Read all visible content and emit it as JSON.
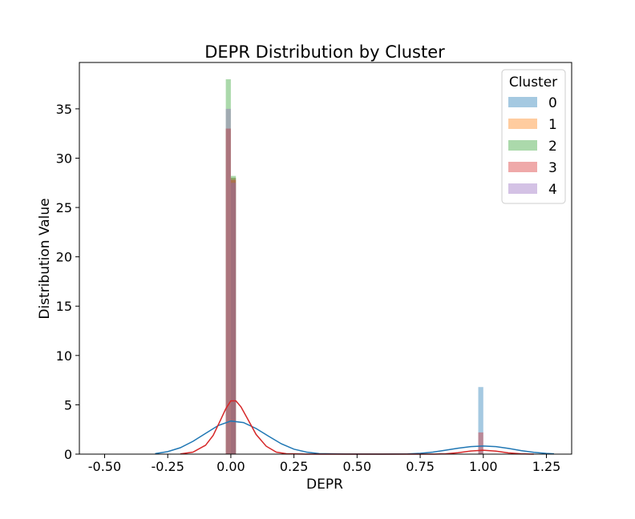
{
  "chart_data": {
    "type": "bar",
    "title": "DEPR Distribution by Cluster",
    "xlabel": "DEPR",
    "ylabel": "Distribution Value",
    "xlim": [
      -0.6,
      1.35
    ],
    "ylim": [
      0,
      39.7
    ],
    "xticks": [
      "-0.50",
      "-0.25",
      "0.00",
      "0.25",
      "0.50",
      "0.75",
      "1.00",
      "1.25"
    ],
    "yticks": [
      "0",
      "5",
      "10",
      "15",
      "20",
      "25",
      "30",
      "35"
    ],
    "legend_title": "Cluster",
    "legend_position": "top-right",
    "series": [
      {
        "name": "0",
        "color": "#1f77b4",
        "bars": [
          {
            "x": 0.0,
            "width": 0.02,
            "height": 28.0
          },
          {
            "x": 0.98,
            "width": 0.02,
            "height": 6.8
          }
        ],
        "kde": [
          [
            -0.3,
            0.05
          ],
          [
            -0.25,
            0.25
          ],
          [
            -0.2,
            0.65
          ],
          [
            -0.15,
            1.3
          ],
          [
            -0.1,
            2.1
          ],
          [
            -0.05,
            2.9
          ],
          [
            0.0,
            3.35
          ],
          [
            0.05,
            3.2
          ],
          [
            0.1,
            2.6
          ],
          [
            0.15,
            1.8
          ],
          [
            0.2,
            1.05
          ],
          [
            0.25,
            0.5
          ],
          [
            0.3,
            0.2
          ],
          [
            0.35,
            0.05
          ],
          [
            0.45,
            0.01
          ],
          [
            0.6,
            0.0
          ],
          [
            0.7,
            0.02
          ],
          [
            0.75,
            0.08
          ],
          [
            0.8,
            0.2
          ],
          [
            0.85,
            0.4
          ],
          [
            0.9,
            0.6
          ],
          [
            0.95,
            0.76
          ],
          [
            1.0,
            0.82
          ],
          [
            1.05,
            0.76
          ],
          [
            1.1,
            0.58
          ],
          [
            1.15,
            0.36
          ],
          [
            1.2,
            0.18
          ],
          [
            1.25,
            0.07
          ],
          [
            1.28,
            0.03
          ]
        ]
      },
      {
        "name": "1",
        "color": "#ff7f0e",
        "bars": [
          {
            "x": -0.02,
            "width": 0.02,
            "height": 33.0
          },
          {
            "x": 0.0,
            "width": 0.02,
            "height": 28.0
          }
        ],
        "kde": []
      },
      {
        "name": "2",
        "color": "#2ca02c",
        "bars": [
          {
            "x": -0.02,
            "width": 0.02,
            "height": 38.0
          },
          {
            "x": 0.0,
            "width": 0.02,
            "height": 28.2
          }
        ],
        "kde": []
      },
      {
        "name": "3",
        "color": "#d62728",
        "bars": [
          {
            "x": -0.02,
            "width": 0.02,
            "height": 33.0
          },
          {
            "x": 0.0,
            "width": 0.02,
            "height": 27.8
          },
          {
            "x": 0.98,
            "width": 0.02,
            "height": 2.2
          }
        ],
        "kde": [
          [
            -0.2,
            0.02
          ],
          [
            -0.15,
            0.2
          ],
          [
            -0.1,
            0.9
          ],
          [
            -0.07,
            1.9
          ],
          [
            -0.04,
            3.5
          ],
          [
            -0.02,
            4.6
          ],
          [
            0.0,
            5.4
          ],
          [
            0.02,
            5.4
          ],
          [
            0.04,
            4.8
          ],
          [
            0.07,
            3.4
          ],
          [
            0.1,
            2.0
          ],
          [
            0.14,
            0.8
          ],
          [
            0.18,
            0.2
          ],
          [
            0.22,
            0.04
          ],
          [
            0.3,
            0.0
          ],
          [
            0.8,
            0.0
          ],
          [
            0.85,
            0.03
          ],
          [
            0.9,
            0.15
          ],
          [
            0.95,
            0.32
          ],
          [
            1.0,
            0.4
          ],
          [
            1.05,
            0.3
          ],
          [
            1.1,
            0.12
          ],
          [
            1.15,
            0.03
          ],
          [
            1.2,
            0.0
          ]
        ]
      },
      {
        "name": "4",
        "color": "#9467bd",
        "bars": [
          {
            "x": -0.02,
            "width": 0.02,
            "height": 35.0
          },
          {
            "x": 0.0,
            "width": 0.02,
            "height": 27.5
          }
        ],
        "kde": []
      }
    ]
  }
}
